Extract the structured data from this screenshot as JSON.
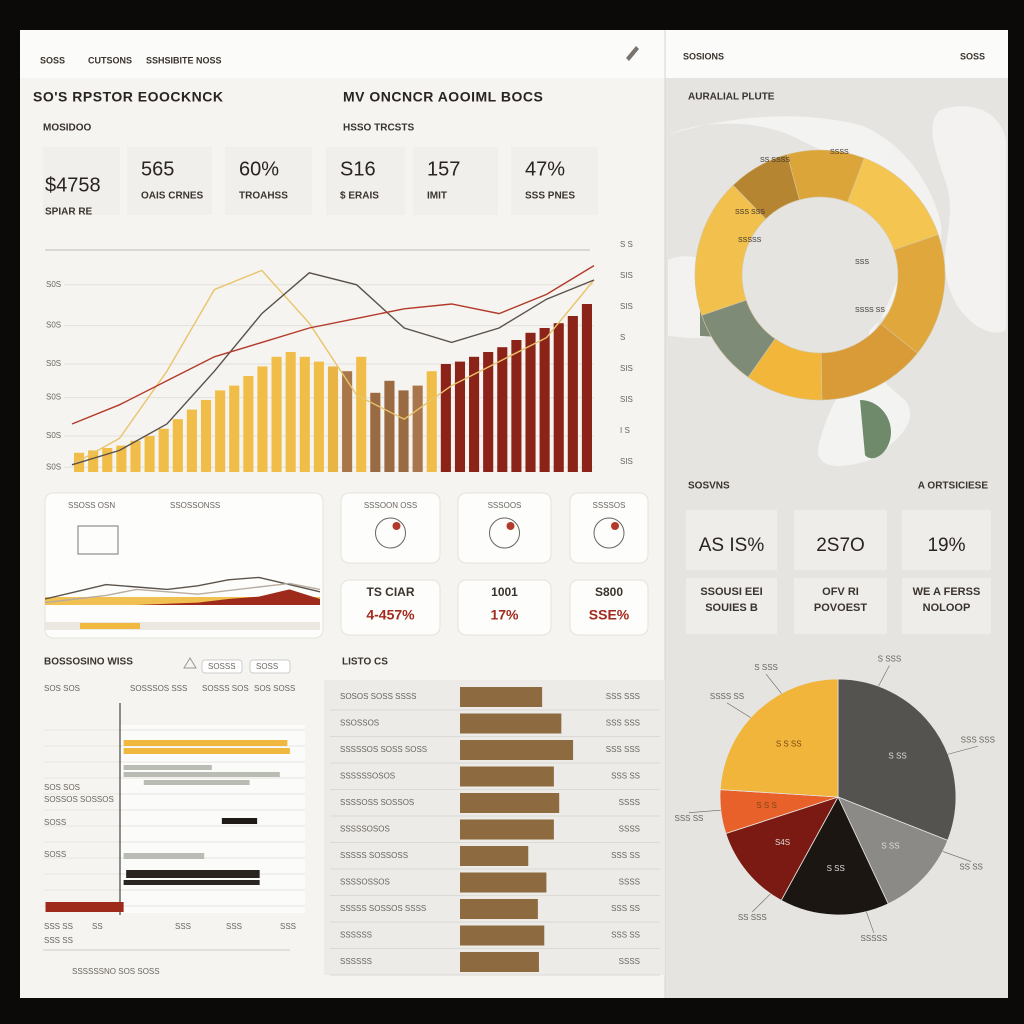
{
  "nav": {
    "items": [
      "SOSS",
      "CUTSONS",
      "SSHSIBITE NOSS"
    ],
    "right_title": "SOSIONS",
    "right_link": "SOSS"
  },
  "header": {
    "title": "SO'S RPSTOR EOOCKNCK",
    "subtitle": "MV ONCNCR AOOIML BOCS",
    "section": "MOSIDOO",
    "section2": "HSSO TRCSTS"
  },
  "kpis": [
    {
      "value": "$4758",
      "label": "SPIAR RE"
    },
    {
      "value": "565",
      "label": "OAIS CRNES"
    },
    {
      "value": "60%",
      "label": "TROAHSS"
    },
    {
      "value": "S16",
      "label": "$ ERAIS"
    },
    {
      "value": "157",
      "label": "IMIT"
    },
    {
      "value": "47%",
      "label": "SSS PNES"
    }
  ],
  "main_chart": {
    "type": "bar",
    "ylim": [
      0,
      100
    ],
    "yticks": [
      {
        "value": 78,
        "label": "S0S"
      },
      {
        "value": 61,
        "label": "S0S"
      },
      {
        "value": 45,
        "label": "S0S"
      },
      {
        "value": 31,
        "label": "S0S"
      },
      {
        "value": 15,
        "label": "S0S"
      },
      {
        "value": 2,
        "label": "S0S"
      }
    ],
    "right_labels": [
      "S S",
      "SIS",
      "SIS",
      "S",
      "SIS",
      "SIS",
      "I S",
      "SIS"
    ],
    "values": [
      8,
      9,
      10,
      11,
      13,
      15,
      18,
      22,
      26,
      30,
      34,
      36,
      40,
      44,
      48,
      50,
      48,
      46,
      44,
      42,
      48,
      33,
      38,
      34,
      36,
      42,
      45,
      46,
      48,
      50,
      52,
      55,
      58,
      60,
      62,
      65,
      70
    ],
    "bar_colors": [
      "#f0be48",
      "#f0be48",
      "#f0be48",
      "#f0be48",
      "#f0be48",
      "#f0be48",
      "#f0be48",
      "#f0be48",
      "#f0be48",
      "#f0be48",
      "#f0be48",
      "#f0be48",
      "#f0be48",
      "#f0be48",
      "#f0be48",
      "#f0be48",
      "#f0be48",
      "#f0be48",
      "#e8b545",
      "#a8764a",
      "#f0be48",
      "#9a6a42",
      "#9a6a42",
      "#9a6a42",
      "#a8764a",
      "#f0be48",
      "#8c2318",
      "#8c2318",
      "#8c2318",
      "#8c2318",
      "#8c2318",
      "#8c2318",
      "#8c2318",
      "#8c2318",
      "#8c2318",
      "#8c2318",
      "#8c2318"
    ],
    "lines": [
      {
        "color": "#e9c46a",
        "values": [
          3,
          14,
          42,
          76,
          84,
          62,
          32,
          22,
          36,
          46,
          56,
          80
        ]
      },
      {
        "color": "#5a524b",
        "values": [
          3,
          9,
          20,
          42,
          66,
          83,
          78,
          60,
          54,
          60,
          72,
          80
        ]
      },
      {
        "color": "#b23a2a",
        "values": [
          20,
          28,
          38,
          48,
          54,
          60,
          64,
          68,
          70,
          66,
          74,
          86
        ]
      }
    ]
  },
  "trend_card": {
    "labels": [
      "SSOSS OSN",
      "SSOSSONSS"
    ],
    "ylim": [
      0,
      100
    ],
    "series": [
      {
        "color": "#5b534c",
        "values": [
          10,
          22,
          34,
          30,
          26,
          32,
          42,
          46,
          34,
          22
        ]
      },
      {
        "color": "#b9ada0",
        "values": [
          4,
          10,
          16,
          26,
          22,
          18,
          24,
          30,
          36,
          26
        ]
      },
      {
        "color": "#9e2a1c",
        "values": [
          0,
          0,
          0,
          0,
          2,
          4,
          10,
          14,
          26,
          10
        ]
      }
    ]
  },
  "icon_cards": [
    "SSSOON OSS",
    "SSSOOS",
    "SSSSOS"
  ],
  "value_cards": [
    {
      "title": "TS CIAR",
      "value": "4-457%"
    },
    {
      "title": "1001",
      "value": "17%"
    },
    {
      "title": "S800",
      "value": "SSE%"
    }
  ],
  "hbar_panel": {
    "title": "BOSSOSINO WISS",
    "filters": [
      "SOSSS",
      "SOSS"
    ],
    "columns": [
      "SOS SOS",
      "SOSSSOS SSS",
      "SOSSS SOS",
      "SOS SOSS"
    ],
    "row_labels": [
      "SOS SOS",
      "SOSSOS SOSSOS",
      "SOSS",
      "SOSS"
    ],
    "axis_labels": [
      "SSS SS",
      "SS",
      "SSS",
      "SSS",
      "SSS"
    ],
    "footer": "SSSSSSNO SOS SOSS",
    "xlim": [
      -32,
      72
    ],
    "bars": [
      {
        "start": 0,
        "end": 65,
        "color": "#f0b83e"
      },
      {
        "start": 0,
        "end": 66,
        "color": "#f0b83e"
      },
      {
        "start": 0,
        "end": 35,
        "color": "#b8bcb3"
      },
      {
        "start": 0,
        "end": 62,
        "color": "#b8bcb3"
      },
      {
        "start": 8,
        "end": 50,
        "color": "#b8bcb3"
      },
      {
        "start": 39,
        "end": 53,
        "color": "#1e1a17"
      },
      {
        "start": 0,
        "end": 32,
        "color": "#b8bcb3"
      },
      {
        "start": 1,
        "end": 54,
        "color": "#2b2522"
      },
      {
        "start": 0,
        "end": 54,
        "color": "#2b2522"
      },
      {
        "start": -31,
        "end": 0,
        "color": "#9e2a1c"
      }
    ]
  },
  "list_panel": {
    "title": "LISTO CS",
    "xlim": [
      0,
      120
    ],
    "rows": [
      {
        "label": "SOSOS SOSS SSSS",
        "value": 77,
        "value_label": "SSS SSS"
      },
      {
        "label": "SSOSSOS",
        "value": 95,
        "value_label": "SSS SSS"
      },
      {
        "label": "SSSSSOS SOSS SOSS",
        "value": 106,
        "value_label": "SSS SSS"
      },
      {
        "label": "SSSSSSOSOS",
        "value": 88,
        "value_label": "SSS SS"
      },
      {
        "label": "SSSSOSS SOSSOS",
        "value": 93,
        "value_label": "SSSS"
      },
      {
        "label": "SSSSSOSOS",
        "value": 88,
        "value_label": "SSSS"
      },
      {
        "label": "SSSSS SOSSOSS",
        "value": 64,
        "value_label": "SSS SS"
      },
      {
        "label": "SSSSOSSOS",
        "value": 81,
        "value_label": "SSSS"
      },
      {
        "label": "SSSSS SOSSOS SSSS",
        "value": 73,
        "value_label": "SSS SS"
      },
      {
        "label": "SSSSSS",
        "value": 79,
        "value_label": "SSS SS"
      },
      {
        "label": "SSSSSS",
        "value": 74,
        "value_label": "SSSS"
      }
    ]
  },
  "map_panel": {
    "title": "AURALIAL PLUTE",
    "donut": [
      {
        "value": 18,
        "color": "#f2c04c"
      },
      {
        "value": 8,
        "color": "#b68531"
      },
      {
        "value": 10,
        "color": "#dca53a"
      },
      {
        "value": 14,
        "color": "#f5c552"
      },
      {
        "value": 16,
        "color": "#e0a73c"
      },
      {
        "value": 14,
        "color": "#d89b38"
      },
      {
        "value": 10,
        "color": "#f1b63a"
      },
      {
        "value": 10,
        "color": "#7e8b76"
      }
    ],
    "labels": [
      "SS SSSS",
      "SSSS",
      "SSS SSS",
      "SSSSS",
      "SSS",
      "SSSS SS"
    ]
  },
  "stats_panel": {
    "title": "SOSVNS",
    "link": "A ORTSICIESE",
    "cards": [
      {
        "value": "AS IS%",
        "label": "SSOUSI EEI",
        "sub": "SOUIES B"
      },
      {
        "value": "2S7O",
        "label": "OFV RI",
        "sub": "POVOEST"
      },
      {
        "value": "19%",
        "label": "WE A FERSS",
        "sub": "NOLOOP"
      }
    ]
  },
  "pie": {
    "type": "pie",
    "values": [
      31,
      12,
      15,
      12,
      6,
      24
    ],
    "colors": [
      "#555350",
      "#8b8a86",
      "#1c1613",
      "#7a1a12",
      "#e8602a",
      "#f1b53c"
    ],
    "labels": [
      "S SS",
      "S SS",
      "S SS",
      "S4S",
      "S S S",
      "S S SS"
    ],
    "callouts": [
      "S SSS",
      "S SSS",
      "SSS SSS",
      "SS SS",
      "SSSSS",
      "SS SSS",
      "SSS SS",
      "SSSS SS"
    ]
  }
}
